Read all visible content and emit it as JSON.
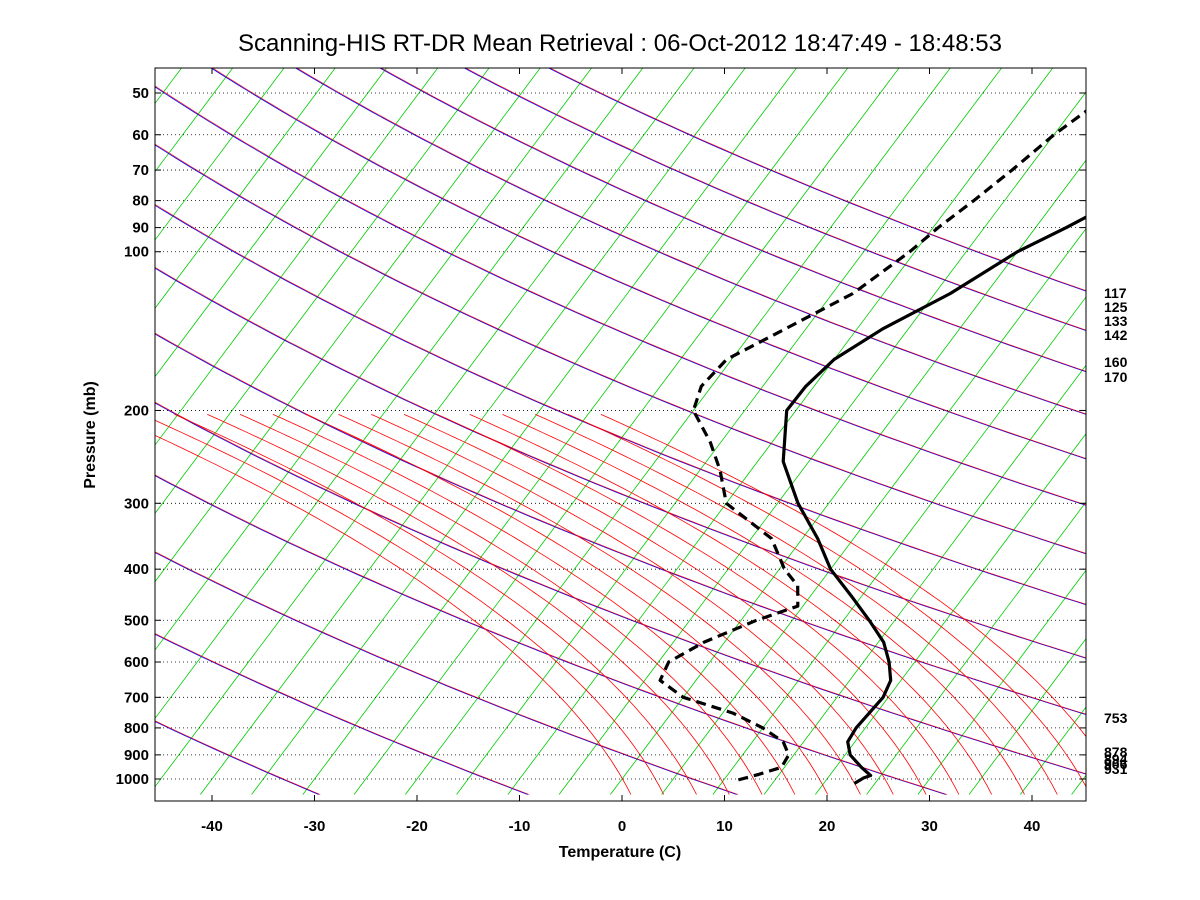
{
  "chart_data": {
    "type": "line",
    "subtype": "skew-t log-p sounding",
    "title": "Scanning-HIS RT-DR Mean Retrieval : 06-Oct-2012 18:47:49 - 18:48:53",
    "xlabel": "Temperature (C)",
    "ylabel": "Pressure (mb)",
    "xlim": [
      -45,
      45
    ],
    "ylim": [
      1070,
      45
    ],
    "yscale": "log",
    "x_ticks": [
      "-40",
      "-30",
      "-20",
      "-10",
      "0",
      "10",
      "20",
      "30",
      "40"
    ],
    "y_ticks": [
      "50",
      "60",
      "70",
      "80",
      "90",
      "100",
      "200",
      "300",
      "400",
      "500",
      "600",
      "700",
      "800",
      "900",
      "1000"
    ],
    "grid": true,
    "right_labels": [
      "117",
      "125",
      "133",
      "142",
      "160",
      "170",
      "753",
      "878",
      "894",
      "906",
      "931"
    ],
    "series": [
      {
        "name": "Temperature",
        "style": "solid",
        "color": "#000000",
        "points": [
          {
            "p": 45,
            "t": 31
          },
          {
            "p": 50,
            "t": 25
          },
          {
            "p": 60,
            "t": 16
          },
          {
            "p": 70,
            "t": 10
          },
          {
            "p": 80,
            "t": 6
          },
          {
            "p": 90,
            "t": 3
          },
          {
            "p": 100,
            "t": 0
          },
          {
            "p": 120,
            "t": -3.5
          },
          {
            "p": 140,
            "t": -7.5
          },
          {
            "p": 160,
            "t": -10
          },
          {
            "p": 180,
            "t": -10.8
          },
          {
            "p": 200,
            "t": -10.9
          },
          {
            "p": 250,
            "t": -7.5
          },
          {
            "p": 300,
            "t": -3
          },
          {
            "p": 350,
            "t": 1.5
          },
          {
            "p": 400,
            "t": 5
          },
          {
            "p": 450,
            "t": 9
          },
          {
            "p": 500,
            "t": 12.5
          },
          {
            "p": 550,
            "t": 15.5
          },
          {
            "p": 600,
            "t": 17.5
          },
          {
            "p": 650,
            "t": 19
          },
          {
            "p": 700,
            "t": 19.5
          },
          {
            "p": 750,
            "t": 19.3
          },
          {
            "p": 800,
            "t": 19.1
          },
          {
            "p": 850,
            "t": 19.3
          },
          {
            "p": 900,
            "t": 20.5
          },
          {
            "p": 950,
            "t": 22.5
          },
          {
            "p": 985,
            "t": 24
          },
          {
            "p": 995,
            "t": 23.5
          },
          {
            "p": 1020,
            "t": 23
          }
        ]
      },
      {
        "name": "Dew point",
        "style": "dashed",
        "color": "#000000",
        "points": [
          {
            "p": 45,
            "t": -1
          },
          {
            "p": 50,
            "t": -2.5
          },
          {
            "p": 60,
            "t": -5
          },
          {
            "p": 70,
            "t": -6.5
          },
          {
            "p": 80,
            "t": -8
          },
          {
            "p": 90,
            "t": -9.5
          },
          {
            "p": 100,
            "t": -10.5
          },
          {
            "p": 120,
            "t": -13
          },
          {
            "p": 140,
            "t": -17
          },
          {
            "p": 160,
            "t": -20.5
          },
          {
            "p": 180,
            "t": -21
          },
          {
            "p": 200,
            "t": -20
          },
          {
            "p": 230,
            "t": -16
          },
          {
            "p": 260,
            "t": -13
          },
          {
            "p": 300,
            "t": -10
          },
          {
            "p": 350,
            "t": -3
          },
          {
            "p": 400,
            "t": 0.5
          },
          {
            "p": 430,
            "t": 3
          },
          {
            "p": 470,
            "t": 4.5
          },
          {
            "p": 500,
            "t": 1.5
          },
          {
            "p": 550,
            "t": -2
          },
          {
            "p": 600,
            "t": -4
          },
          {
            "p": 650,
            "t": -3.5
          },
          {
            "p": 700,
            "t": 0
          },
          {
            "p": 750,
            "t": 6
          },
          {
            "p": 800,
            "t": 10
          },
          {
            "p": 850,
            "t": 13
          },
          {
            "p": 900,
            "t": 14.5
          },
          {
            "p": 950,
            "t": 14.7
          },
          {
            "p": 980,
            "t": 13
          },
          {
            "p": 1010,
            "t": 11
          }
        ]
      }
    ],
    "background_lines": {
      "isotherms_color": "#00cc00",
      "dry_adiabats_color": "#0000ff",
      "moist_adiabats_color": "#ff0000",
      "mixing_ratio_color": "#ff0000"
    }
  }
}
